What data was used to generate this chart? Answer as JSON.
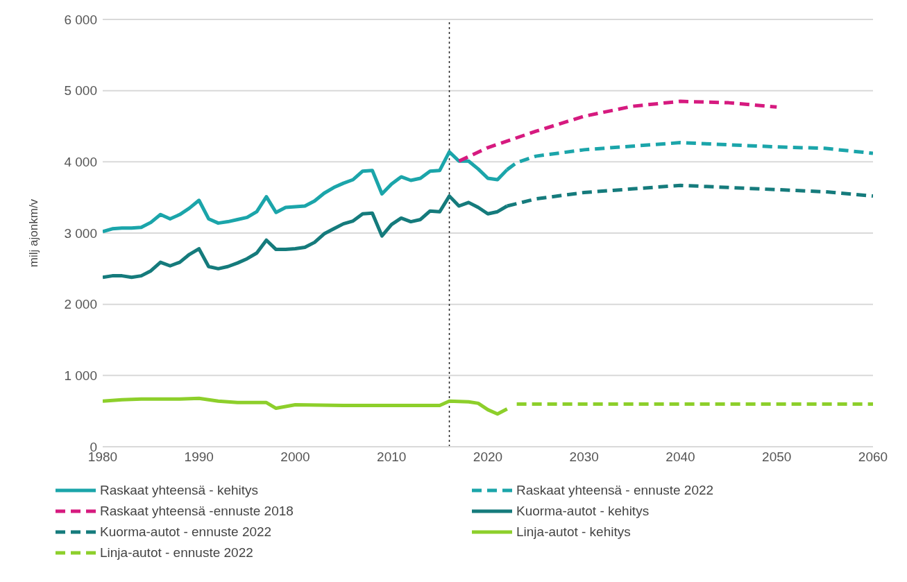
{
  "chart_data": {
    "type": "line",
    "ylabel": "milj ajonkm/v",
    "xlim": [
      1980,
      2060
    ],
    "xticks": [
      1980,
      1990,
      2000,
      2010,
      2020,
      2030,
      2040,
      2050,
      2060
    ],
    "ylim": [
      0,
      6000
    ],
    "yticks": [
      0,
      {
        "value": 1000,
        "label": "1 000"
      },
      {
        "value": 2000,
        "label": "2 000"
      },
      {
        "value": 3000,
        "label": "3 000"
      },
      {
        "value": 4000,
        "label": "4 000"
      },
      {
        "value": 5000,
        "label": "5 000"
      },
      {
        "value": 6000,
        "label": "6 000"
      }
    ],
    "grid": "y",
    "legend": "bottom",
    "marker": "none",
    "ref_lines": [
      {
        "axis": "x",
        "value": 2016,
        "color": "#222222",
        "line_style": "dotted"
      }
    ],
    "series": [
      {
        "name": "Raskaat yhteensä - kehitys",
        "color": "#1ba5aa",
        "line_style": "solid",
        "x": [
          1980,
          1981,
          1982,
          1983,
          1984,
          1985,
          1986,
          1987,
          1988,
          1989,
          1990,
          1991,
          1992,
          1993,
          1994,
          1995,
          1996,
          1997,
          1998,
          1999,
          2000,
          2001,
          2002,
          2003,
          2004,
          2005,
          2006,
          2007,
          2008,
          2009,
          2010,
          2011,
          2012,
          2013,
          2014,
          2015,
          2016,
          2017,
          2018,
          2019,
          2020,
          2021,
          2022
        ],
        "values": [
          3020,
          3060,
          3070,
          3070,
          3080,
          3150,
          3260,
          3200,
          3260,
          3350,
          3460,
          3200,
          3140,
          3160,
          3190,
          3220,
          3300,
          3510,
          3290,
          3360,
          3370,
          3380,
          3450,
          3560,
          3640,
          3700,
          3750,
          3870,
          3880,
          3550,
          3690,
          3790,
          3740,
          3770,
          3870,
          3880,
          4140,
          4010,
          4010,
          3900,
          3770,
          3750,
          3890
        ]
      },
      {
        "name": "Raskaat yhteensä - ennuste 2022",
        "color": "#1ba5aa",
        "line_style": "dashed",
        "x": [
          2022,
          2023,
          2025,
          2030,
          2035,
          2040,
          2045,
          2050,
          2055,
          2060
        ],
        "values": [
          3890,
          3990,
          4080,
          4170,
          4220,
          4270,
          4240,
          4210,
          4190,
          4120
        ]
      },
      {
        "name": "Raskaat yhteensä -ennuste 2018",
        "color": "#d61a7f",
        "line_style": "dashed",
        "x": [
          2017,
          2020,
          2025,
          2030,
          2035,
          2040,
          2045,
          2050
        ],
        "values": [
          4010,
          4200,
          4430,
          4640,
          4780,
          4850,
          4830,
          4770
        ]
      },
      {
        "name": "Kuorma-autot - kehitys",
        "color": "#157b7c",
        "line_style": "solid",
        "x": [
          1980,
          1981,
          1982,
          1983,
          1984,
          1985,
          1986,
          1987,
          1988,
          1989,
          1990,
          1991,
          1992,
          1993,
          1994,
          1995,
          1996,
          1997,
          1998,
          1999,
          2000,
          2001,
          2002,
          2003,
          2004,
          2005,
          2006,
          2007,
          2008,
          2009,
          2010,
          2011,
          2012,
          2013,
          2014,
          2015,
          2016,
          2017,
          2018,
          2019,
          2020,
          2021,
          2022
        ],
        "values": [
          2380,
          2400,
          2400,
          2380,
          2400,
          2470,
          2590,
          2540,
          2590,
          2700,
          2780,
          2530,
          2500,
          2530,
          2580,
          2640,
          2720,
          2900,
          2770,
          2770,
          2780,
          2800,
          2870,
          2990,
          3060,
          3130,
          3170,
          3270,
          3280,
          2960,
          3120,
          3210,
          3160,
          3190,
          3310,
          3300,
          3520,
          3380,
          3430,
          3360,
          3270,
          3300,
          3380
        ]
      },
      {
        "name": "Kuorma-autot - ennuste 2022",
        "color": "#157b7c",
        "line_style": "dashed",
        "x": [
          2022,
          2025,
          2030,
          2035,
          2040,
          2045,
          2050,
          2055,
          2060
        ],
        "values": [
          3380,
          3480,
          3570,
          3620,
          3670,
          3640,
          3610,
          3580,
          3520
        ]
      },
      {
        "name": "Linja-autot - kehitys",
        "color": "#8dcf2b",
        "line_style": "solid",
        "x": [
          1980,
          1982,
          1984,
          1986,
          1988,
          1990,
          1992,
          1994,
          1997,
          1998,
          2000,
          2005,
          2010,
          2015,
          2016,
          2018,
          2019,
          2020,
          2021,
          2022
        ],
        "values": [
          640,
          660,
          670,
          670,
          670,
          680,
          640,
          620,
          620,
          540,
          590,
          580,
          580,
          580,
          640,
          630,
          610,
          520,
          460,
          530
        ]
      },
      {
        "name": "Linja-autot - ennuste 2022",
        "color": "#8dcf2b",
        "line_style": "dashed",
        "x": [
          2023,
          2030,
          2040,
          2050,
          2060
        ],
        "values": [
          600,
          600,
          600,
          600,
          600
        ]
      }
    ]
  }
}
